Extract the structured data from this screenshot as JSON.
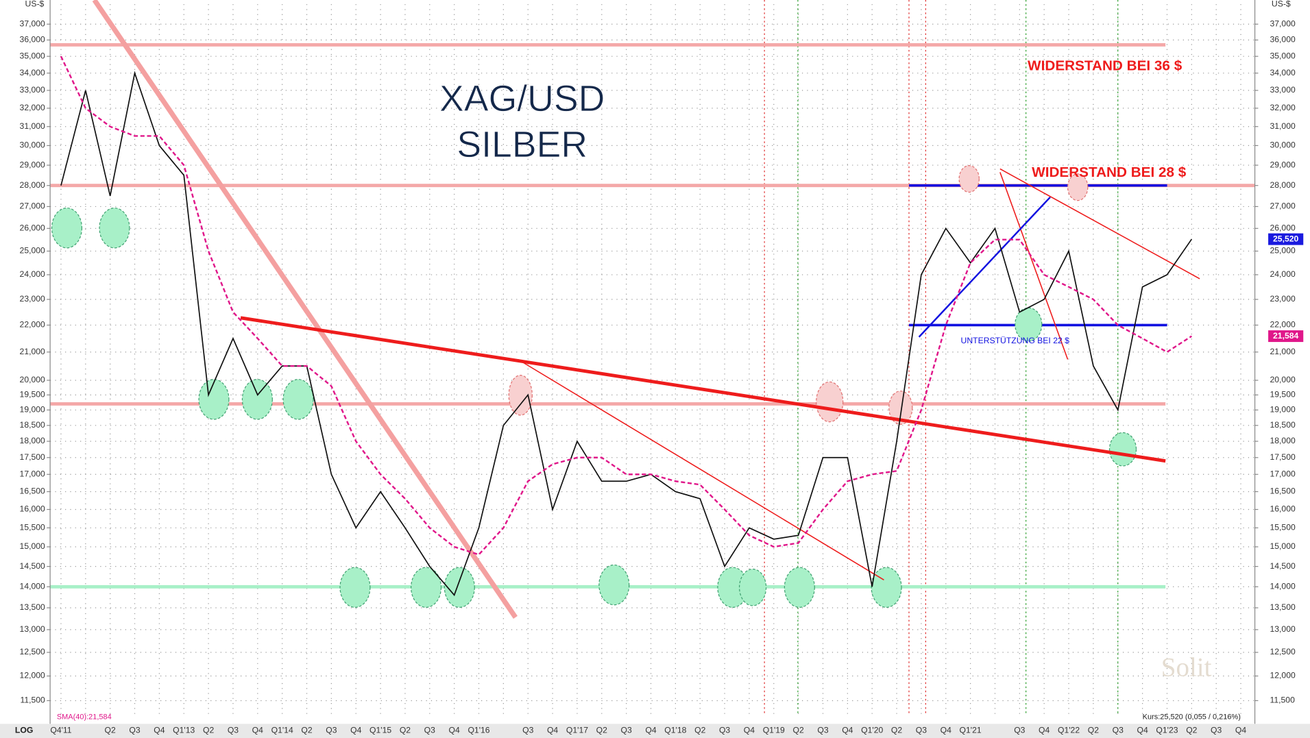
{
  "chart_data": {
    "type": "line",
    "title": "XAG/USD",
    "subtitle": "SILBER",
    "y_unit": "US-$",
    "scale_label": "LOG",
    "log_scale": true,
    "grid": true,
    "categories": [
      "Q4'11",
      null,
      "Q2",
      "Q3",
      "Q4",
      "Q1'13",
      "Q2",
      "Q3",
      "Q4",
      "Q1'14",
      "Q2",
      "Q3",
      "Q4",
      "Q1'15",
      "Q2",
      "Q3",
      "Q4",
      "Q1'16",
      null,
      "Q3",
      "Q4",
      "Q1'17",
      "Q2",
      "Q3",
      "Q4",
      "Q1'18",
      "Q2",
      "Q3",
      "Q4",
      "Q1'19",
      "Q2",
      "Q3",
      "Q4",
      "Q1'20",
      "Q2",
      "Q3",
      "Q4",
      "Q1'21",
      null,
      "Q3",
      "Q4",
      "Q1'22",
      "Q2",
      "Q3",
      "Q4",
      "Q1'23",
      "Q2",
      "Q3",
      "Q4"
    ],
    "series": [
      {
        "color": "#111111",
        "values": [
          28,
          33,
          27.5,
          34,
          30,
          28.5,
          19.5,
          21.5,
          19.5,
          20.5,
          20.5,
          17,
          15.5,
          16.5,
          15.5,
          14.5,
          13.8,
          15.5,
          18.5,
          19.5,
          16,
          18,
          16.8,
          16.8,
          17,
          16.5,
          16.3,
          14.5,
          15.5,
          15.2,
          15.3,
          17.5,
          17.5,
          14,
          18,
          24,
          26,
          24.5,
          26,
          22.5,
          23,
          25,
          20.5,
          19,
          23.5,
          24,
          25.52,
          null,
          null
        ],
        "value_labels": [
          null,
          null,
          null,
          null,
          null,
          null,
          null,
          null,
          null,
          null,
          null,
          null,
          null,
          null,
          null,
          null,
          null,
          null,
          null,
          null,
          null,
          null,
          null,
          null,
          null,
          null,
          null,
          null,
          null,
          null,
          null,
          null,
          null,
          null,
          null,
          null,
          null,
          null,
          null,
          null,
          null,
          null,
          null,
          null,
          null,
          null,
          "25,520",
          null,
          null
        ],
        "label_bg": "#1a1adf"
      },
      {
        "name": "SMA(40):21,584",
        "color": "#e0178a",
        "dashed": true,
        "values": [
          35,
          32,
          31,
          30.5,
          30.5,
          29,
          25,
          22.5,
          21.5,
          20.5,
          20.5,
          19.8,
          18,
          17,
          16.3,
          15.5,
          15,
          14.8,
          15.5,
          16.8,
          17.3,
          17.5,
          17.5,
          17,
          17,
          16.8,
          16.7,
          16,
          15.3,
          15,
          15.1,
          16,
          16.8,
          17,
          17.1,
          19,
          22,
          24.5,
          25.5,
          25.5,
          24,
          23.5,
          23,
          22,
          21.5,
          21,
          21.584,
          null,
          null
        ],
        "value_labels": [
          null,
          null,
          null,
          null,
          null,
          null,
          null,
          null,
          null,
          null,
          null,
          null,
          null,
          null,
          null,
          null,
          null,
          null,
          null,
          null,
          null,
          null,
          null,
          null,
          null,
          null,
          null,
          null,
          null,
          null,
          null,
          null,
          null,
          null,
          null,
          null,
          null,
          null,
          null,
          null,
          null,
          null,
          null,
          null,
          null,
          null,
          "21,584",
          null,
          null
        ],
        "label_bg": "#e0178a"
      }
    ],
    "levels": [
      {
        "value": 35.7,
        "color": "#f4a8a8"
      },
      {
        "value": 28,
        "color": "#f4a8a8"
      },
      {
        "value": 19.2,
        "color": "#f4a8a8"
      },
      {
        "value": 14,
        "color": "#a8f0c8"
      }
    ],
    "support_lines": [
      {
        "value": 28,
        "color": "#1010e0"
      },
      {
        "value": 22,
        "color": "#1010e0"
      }
    ],
    "annotations": [
      "WIDERSTAND BEI 36 $",
      "WIDERSTAND BEI 28 $",
      "UNTERSTÜTZUNG BEI 22 $"
    ],
    "footer": "Kurs:25,520 (0,055 / 0,216%)",
    "watermark": "Solit",
    "ylim": [
      11.24,
      38.3
    ],
    "yticks": [
      {
        "value": 11.5,
        "label": "11,500"
      },
      {
        "value": 12,
        "label": "12,000"
      },
      {
        "value": 12.5,
        "label": "12,500"
      },
      {
        "value": 13,
        "label": "13,000"
      },
      {
        "value": 13.5,
        "label": "13,500"
      },
      {
        "value": 14,
        "label": "14,000"
      },
      {
        "value": 14.5,
        "label": "14,500"
      },
      {
        "value": 15,
        "label": "15,000"
      },
      {
        "value": 15.5,
        "label": "15,500"
      },
      {
        "value": 16,
        "label": "16,000"
      },
      {
        "value": 16.5,
        "label": "16,500"
      },
      {
        "value": 17,
        "label": "17,000"
      },
      {
        "value": 17.5,
        "label": "17,500"
      },
      {
        "value": 18,
        "label": "18,000"
      },
      {
        "value": 18.5,
        "label": "18,500"
      },
      {
        "value": 19,
        "label": "19,000"
      },
      {
        "value": 19.5,
        "label": "19,500"
      },
      {
        "value": 20,
        "label": "20,000"
      },
      {
        "value": 21,
        "label": "21,000"
      },
      {
        "value": 22,
        "label": "22,000"
      },
      {
        "value": 23,
        "label": "23,000"
      },
      {
        "value": 24,
        "label": "24,000"
      },
      {
        "value": 25,
        "label": "25,000"
      },
      {
        "value": 26,
        "label": "26,000"
      },
      {
        "value": 27,
        "label": "27,000"
      },
      {
        "value": 28,
        "label": "28,000"
      },
      {
        "value": 29,
        "label": "29,000"
      },
      {
        "value": 30,
        "label": "30,000"
      },
      {
        "value": 31,
        "label": "31,000"
      },
      {
        "value": 32,
        "label": "32,000"
      },
      {
        "value": 33,
        "label": "33,000"
      },
      {
        "value": 34,
        "label": "34,000"
      },
      {
        "value": 35,
        "label": "35,000"
      },
      {
        "value": 36,
        "label": "36,000"
      },
      {
        "value": 37,
        "label": "37,000"
      }
    ]
  }
}
